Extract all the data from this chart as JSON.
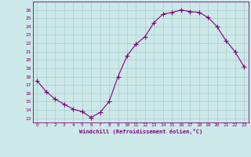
{
  "x": [
    0,
    1,
    2,
    3,
    4,
    5,
    6,
    7,
    8,
    9,
    10,
    11,
    12,
    13,
    14,
    15,
    16,
    17,
    18,
    19,
    20,
    21,
    22,
    23
  ],
  "y": [
    17.5,
    16.2,
    15.3,
    14.7,
    14.1,
    13.8,
    13.1,
    13.7,
    15.0,
    18.0,
    20.5,
    21.9,
    22.8,
    24.5,
    25.5,
    25.7,
    26.0,
    25.8,
    25.7,
    25.1,
    24.0,
    22.3,
    21.0,
    19.2
  ],
  "line_color": "#800080",
  "marker": "+",
  "marker_size": 4,
  "bg_color": "#cce8e8",
  "grid_color": "#aacccc",
  "xlabel": "Windchill (Refroidissement éolien,°C)",
  "ylabel_ticks": [
    13,
    14,
    15,
    16,
    17,
    18,
    19,
    20,
    21,
    22,
    23,
    24,
    25,
    26
  ],
  "ylim": [
    12.5,
    27.0
  ],
  "xlim": [
    -0.5,
    23.5
  ],
  "xticks": [
    0,
    1,
    2,
    3,
    4,
    5,
    6,
    7,
    8,
    9,
    10,
    11,
    12,
    13,
    14,
    15,
    16,
    17,
    18,
    19,
    20,
    21,
    22,
    23
  ]
}
